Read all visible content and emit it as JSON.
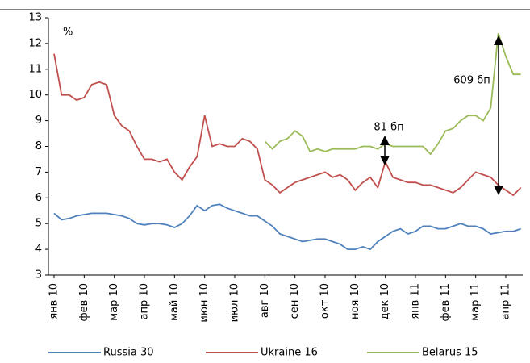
{
  "chart_data": {
    "type": "line",
    "y_unit_label": "%",
    "annotations": [
      "81 бп",
      "609 бп"
    ],
    "categories": [
      "янв 10",
      null,
      null,
      null,
      "фев 10",
      null,
      null,
      null,
      "мар 10",
      null,
      null,
      null,
      "апр 10",
      null,
      null,
      null,
      "май 10",
      null,
      null,
      null,
      "июн 10",
      null,
      null,
      null,
      "июл 10",
      null,
      null,
      null,
      "авг 10",
      null,
      null,
      null,
      "сен 10",
      null,
      null,
      null,
      "окт 10",
      null,
      null,
      null,
      "ноя 10",
      null,
      null,
      null,
      "дек 10",
      null,
      null,
      null,
      "янв 11",
      null,
      null,
      null,
      "фев 11",
      null,
      null,
      null,
      "мар 11",
      null,
      null,
      null,
      "апр 11",
      null,
      null
    ],
    "series": [
      {
        "name": "Russia 30",
        "color": "#4f81bd",
        "values": [
          5.4,
          5.15,
          5.2,
          5.3,
          5.35,
          5.4,
          5.4,
          5.4,
          5.35,
          5.3,
          5.2,
          5.0,
          4.95,
          5.0,
          5.0,
          4.95,
          4.85,
          5.0,
          5.3,
          5.7,
          5.5,
          5.7,
          5.75,
          5.6,
          5.5,
          5.4,
          5.3,
          5.3,
          5.1,
          4.9,
          4.6,
          4.5,
          4.4,
          4.3,
          4.35,
          4.4,
          4.4,
          4.3,
          4.2,
          4.0,
          4.0,
          4.1,
          4.0,
          4.3,
          4.5,
          4.7,
          4.8,
          4.6,
          4.7,
          4.9,
          4.9,
          4.8,
          4.8,
          4.9,
          5.0,
          4.9,
          4.9,
          4.8,
          4.6,
          4.65,
          4.7,
          4.7,
          4.8
        ]
      },
      {
        "name": "Ukraine 16",
        "color": "#c0504d",
        "values": [
          11.6,
          10.0,
          10.0,
          9.8,
          9.9,
          10.4,
          10.5,
          10.4,
          9.2,
          8.8,
          8.6,
          8.0,
          7.5,
          7.5,
          7.4,
          7.5,
          7.0,
          6.7,
          7.2,
          7.6,
          9.2,
          8.0,
          8.1,
          8.0,
          8.0,
          8.3,
          8.2,
          7.9,
          6.7,
          6.5,
          6.2,
          6.4,
          6.6,
          6.7,
          6.8,
          6.9,
          7.0,
          6.8,
          6.9,
          6.7,
          6.3,
          6.6,
          6.8,
          6.4,
          7.4,
          6.8,
          6.7,
          6.6,
          6.6,
          6.5,
          6.5,
          6.4,
          6.3,
          6.2,
          6.4,
          6.7,
          7.0,
          6.9,
          6.8,
          6.5,
          6.3,
          6.1,
          6.4
        ]
      },
      {
        "name": "Belarus 15",
        "color": "#9bbb59",
        "values": [
          null,
          null,
          null,
          null,
          null,
          null,
          null,
          null,
          null,
          null,
          null,
          null,
          null,
          null,
          null,
          null,
          null,
          null,
          null,
          null,
          null,
          null,
          null,
          null,
          null,
          null,
          null,
          null,
          8.2,
          7.9,
          8.2,
          8.3,
          8.6,
          8.4,
          7.8,
          7.9,
          7.8,
          7.9,
          7.9,
          7.9,
          7.9,
          8.0,
          8.0,
          7.9,
          8.1,
          8.0,
          8.0,
          8.0,
          8.0,
          8.0,
          7.7,
          8.1,
          8.6,
          8.7,
          9.0,
          9.2,
          9.2,
          9.0,
          9.5,
          12.4,
          11.5,
          10.8,
          10.8
        ]
      }
    ],
    "ylim": [
      3,
      13
    ],
    "yticks": [
      3,
      4,
      5,
      6,
      7,
      8,
      9,
      10,
      11,
      12,
      13
    ],
    "grid": false,
    "legend": "bottom"
  }
}
